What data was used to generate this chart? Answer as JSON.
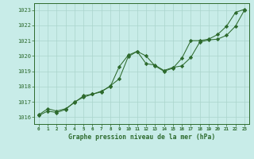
{
  "line1_x": [
    0,
    1,
    2,
    3,
    4,
    5,
    6,
    7,
    8,
    9,
    10,
    11,
    12,
    13,
    14,
    15,
    16,
    17,
    18,
    19,
    20,
    21,
    22,
    23
  ],
  "line1_y": [
    1016.1,
    1016.4,
    1016.3,
    1016.5,
    1017.0,
    1017.3,
    1017.5,
    1017.7,
    1018.0,
    1019.3,
    1020.05,
    1020.3,
    1019.5,
    1019.4,
    1019.05,
    1019.25,
    1019.35,
    1019.9,
    1020.9,
    1021.05,
    1021.1,
    1021.35,
    1021.95,
    1023.0
  ],
  "line2_x": [
    0,
    1,
    2,
    3,
    4,
    5,
    6,
    7,
    8,
    9,
    10,
    11,
    12,
    13,
    14,
    15,
    16,
    17,
    18,
    19,
    20,
    21,
    22,
    23
  ],
  "line2_y": [
    1016.15,
    1016.55,
    1016.4,
    1016.55,
    1016.95,
    1017.4,
    1017.5,
    1017.65,
    1018.05,
    1018.5,
    1019.95,
    1020.3,
    1020.0,
    1019.35,
    1019.0,
    1019.2,
    1019.85,
    1021.0,
    1021.0,
    1021.1,
    1021.4,
    1021.95,
    1022.85,
    1023.05
  ],
  "line_color": "#2d6a2d",
  "bg_color": "#c8ece8",
  "grid_color": "#aad4cc",
  "ylabel_values": [
    1016,
    1017,
    1018,
    1019,
    1020,
    1021,
    1022,
    1023
  ],
  "xlabel_values": [
    0,
    1,
    2,
    3,
    4,
    5,
    6,
    7,
    8,
    9,
    10,
    11,
    12,
    13,
    14,
    15,
    16,
    17,
    18,
    19,
    20,
    21,
    22,
    23
  ],
  "ylim": [
    1015.55,
    1023.45
  ],
  "xlim": [
    -0.5,
    23.5
  ],
  "xlabel": "Graphe pression niveau de la mer (hPa)",
  "marker": "D",
  "marker_size": 2.2,
  "linewidth": 0.75
}
